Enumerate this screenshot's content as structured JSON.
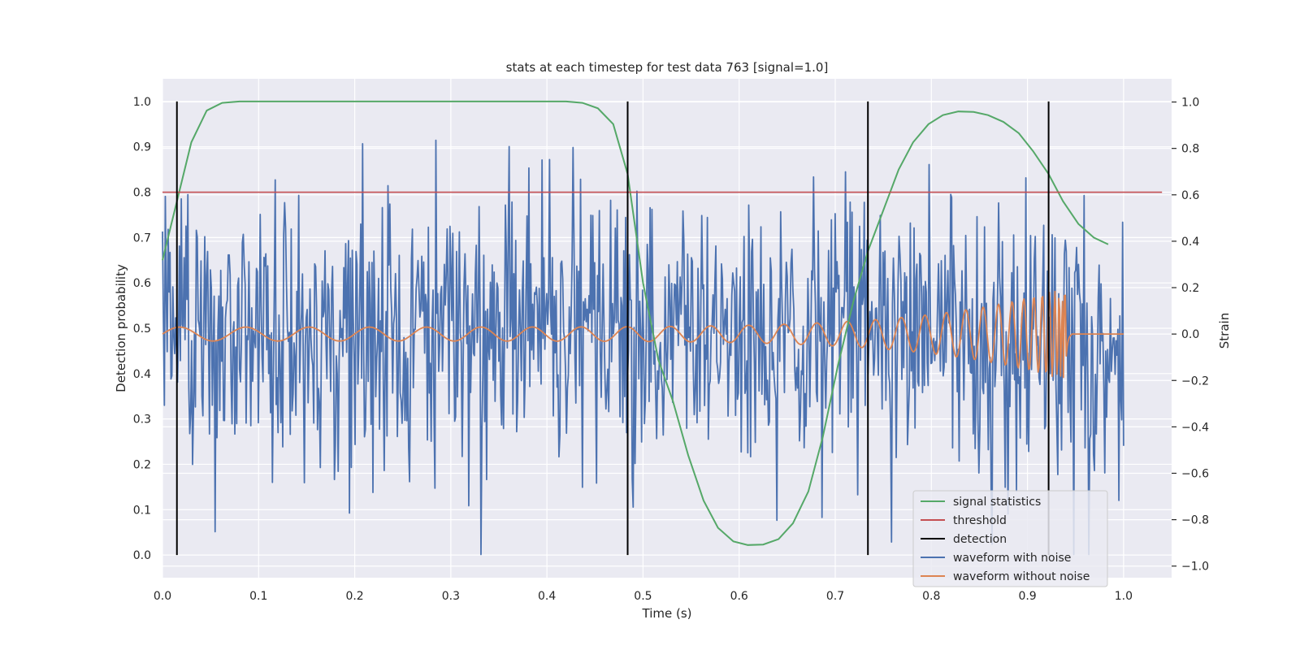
{
  "chart_data": {
    "type": "line",
    "title": "stats at each timestep for test data 763 [signal=1.0]",
    "xlabel": "Time (s)",
    "ylabel": "Detection probability",
    "y2label": "Strain",
    "xlim": [
      0.0,
      1.05
    ],
    "ylim": [
      -0.05,
      1.05
    ],
    "y2lim": [
      -1.05,
      1.1
    ],
    "xticks": [
      "0.0",
      "0.1",
      "0.2",
      "0.3",
      "0.4",
      "0.5",
      "0.6",
      "0.7",
      "0.8",
      "0.9",
      "1.0"
    ],
    "yticks": [
      "0.0",
      "0.1",
      "0.2",
      "0.3",
      "0.4",
      "0.5",
      "0.6",
      "0.7",
      "0.8",
      "0.9",
      "1.0"
    ],
    "y2ticks": [
      "−1.0",
      "−0.8",
      "−0.6",
      "−0.4",
      "−0.2",
      "0.0",
      "0.2",
      "0.4",
      "0.6",
      "0.8",
      "1.0"
    ],
    "grid": true,
    "legend_position": "lower-right",
    "series": [
      {
        "name": "signal statistics",
        "axis": "left",
        "color": "#55a868",
        "x": [
          0.0,
          0.015,
          0.03,
          0.046,
          0.062,
          0.08,
          0.1,
          0.2,
          0.3,
          0.4,
          0.42,
          0.437,
          0.453,
          0.469,
          0.484,
          0.5,
          0.516,
          0.531,
          0.547,
          0.563,
          0.578,
          0.594,
          0.609,
          0.625,
          0.641,
          0.656,
          0.672,
          0.687,
          0.703,
          0.719,
          0.734,
          0.75,
          0.766,
          0.781,
          0.797,
          0.812,
          0.828,
          0.844,
          0.859,
          0.875,
          0.891,
          0.906,
          0.922,
          0.937,
          0.953,
          0.969,
          0.984
        ],
        "y": [
          0.65,
          0.78,
          0.91,
          0.98,
          0.997,
          1.0,
          1.0,
          1.0,
          1.0,
          1.0,
          1.0,
          0.997,
          0.985,
          0.95,
          0.84,
          0.6,
          0.43,
          0.34,
          0.22,
          0.12,
          0.06,
          0.03,
          0.022,
          0.023,
          0.035,
          0.07,
          0.14,
          0.26,
          0.42,
          0.56,
          0.67,
          0.76,
          0.85,
          0.91,
          0.95,
          0.97,
          0.978,
          0.977,
          0.97,
          0.955,
          0.93,
          0.89,
          0.84,
          0.78,
          0.73,
          0.7,
          0.685
        ]
      },
      {
        "name": "threshold",
        "axis": "left",
        "color": "#c44e52",
        "x": [
          0.0,
          1.04
        ],
        "y": [
          0.8,
          0.8
        ]
      },
      {
        "name": "detection",
        "axis": "left",
        "color": "#000000",
        "x": [
          0.015,
          0.484,
          0.734,
          0.922
        ],
        "y": [
          1.0,
          1.0,
          1.0,
          1.0
        ]
      },
      {
        "name": "waveform with noise",
        "axis": "right",
        "color": "#4c72b0"
      },
      {
        "name": "waveform without noise",
        "axis": "right",
        "color": "#dd8452"
      }
    ]
  }
}
